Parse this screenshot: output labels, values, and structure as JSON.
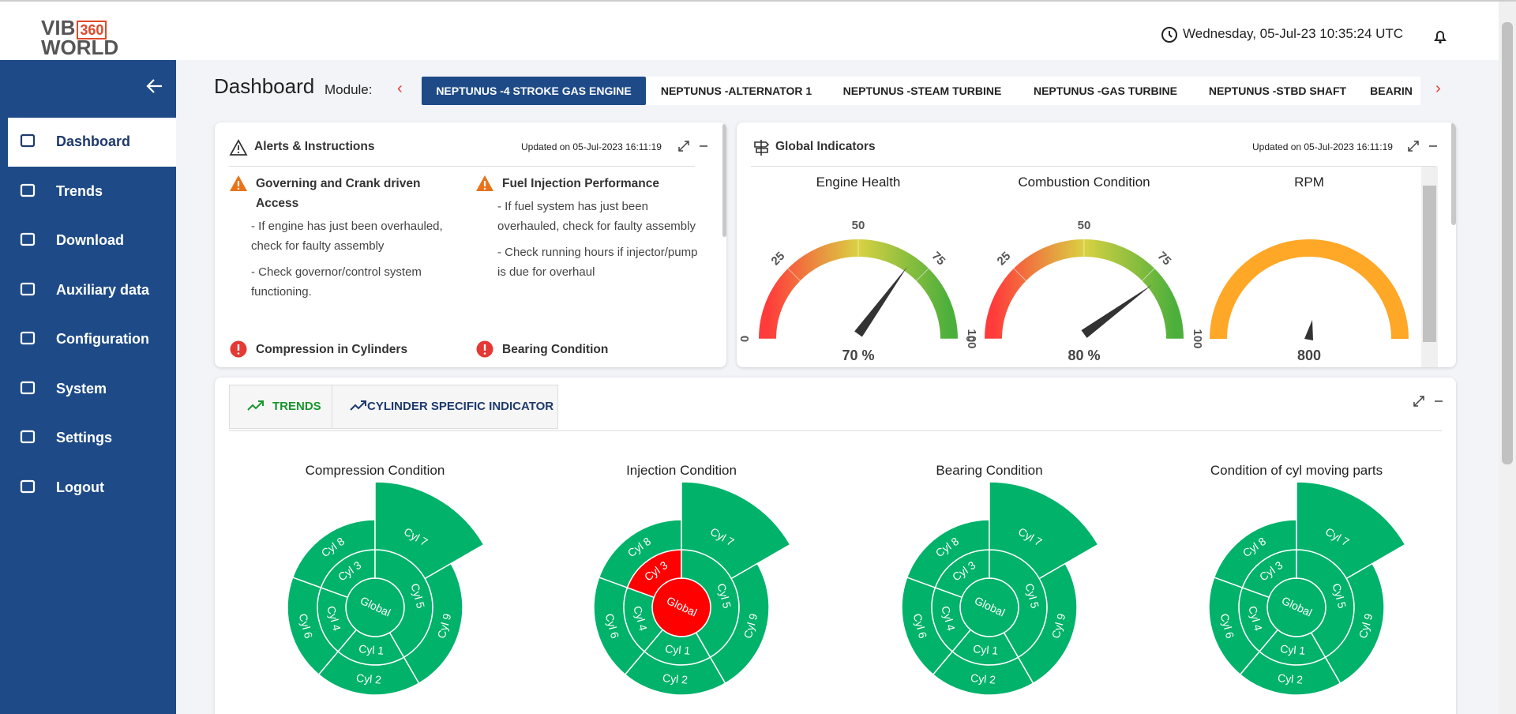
{
  "header": {
    "logo_top": "VIB",
    "logo_badge": "360",
    "logo_bottom": "WORLD",
    "datetime": "Wednesday, 05-Jul-23 10:35:24 UTC"
  },
  "sidebar": {
    "items": [
      "Dashboard",
      "Trends",
      "Download",
      "Auxiliary data",
      "Configuration",
      "System",
      "Settings",
      "Logout"
    ],
    "active": 0
  },
  "page": {
    "title": "Dashboard",
    "module_label": "Module:",
    "modules": [
      "NEPTUNUS -4 STROKE GAS ENGINE",
      "NEPTUNUS -ALTERNATOR 1",
      "NEPTUNUS -STEAM TURBINE",
      "NEPTUNUS -GAS TURBINE",
      "NEPTUNUS -STBD SHAFT",
      "BEARIN"
    ],
    "active_module": 0
  },
  "alerts": {
    "title": "Alerts & Instructions",
    "updated": "Updated on 05-Jul-2023 16:11:19",
    "items": [
      {
        "title": "Governing and Crank driven Access",
        "level": "warning",
        "bullets": [
          "-  If engine has just been overhauled, check for faulty assembly",
          "-  Check governor/control system functioning."
        ]
      },
      {
        "title": "Fuel Injection Performance",
        "level": "warning",
        "bullets": [
          "-  If fuel system has just been overhauled, check for faulty assembly",
          "-  Check running hours if injector/pump is due for overhaul"
        ]
      },
      {
        "title": "Compression in Cylinders",
        "level": "critical",
        "bullets": []
      },
      {
        "title": "Bearing Condition",
        "level": "critical",
        "bullets": []
      }
    ]
  },
  "global_indicators": {
    "title": "Global Indicators",
    "updated": "Updated on 05-Jul-2023 16:11:19",
    "gauges": [
      {
        "title": "Engine Health",
        "value": 70,
        "value_label": "70 %",
        "ylim": [
          0,
          100
        ],
        "ticks": [
          0,
          25,
          50,
          75,
          100
        ]
      },
      {
        "title": "Combustion Condition",
        "value": 80,
        "value_label": "80 %",
        "ylim": [
          0,
          100
        ],
        "ticks": [
          0,
          25,
          50,
          75,
          100
        ]
      },
      {
        "title": "RPM",
        "value_label": "800",
        "color": "#ffa726"
      }
    ]
  },
  "bottom": {
    "tabs": [
      "TRENDS",
      "CYLINDER SPECIFIC INDICATOR"
    ],
    "sunbursts": [
      {
        "title": "Compression Condition",
        "nodes": [
          {
            "label": "Global",
            "color": "#00b26a"
          },
          {
            "label": "Cyl 3",
            "color": "#00b26a"
          },
          {
            "label": "Cyl 5",
            "color": "#00b26a"
          },
          {
            "label": "Cyl 1",
            "color": "#00b26a"
          },
          {
            "label": "Cyl 4",
            "color": "#00b26a"
          },
          {
            "label": "Cyl 8",
            "color": "#00b26a"
          },
          {
            "label": "Cyl 7",
            "color": "#00b26a"
          },
          {
            "label": "Cyl 9",
            "color": "#00b26a"
          },
          {
            "label": "Cyl 2",
            "color": "#00b26a"
          },
          {
            "label": "Cyl 6",
            "color": "#00b26a"
          }
        ]
      },
      {
        "title": "Injection Condition",
        "nodes": [
          {
            "label": "Global",
            "color": "#ff0000"
          },
          {
            "label": "Cyl 3",
            "color": "#ff0000"
          },
          {
            "label": "Cyl 5",
            "color": "#00b26a"
          },
          {
            "label": "Cyl 1",
            "color": "#00b26a"
          },
          {
            "label": "Cyl 4",
            "color": "#00b26a"
          },
          {
            "label": "Cyl 8",
            "color": "#00b26a"
          },
          {
            "label": "Cyl 7",
            "color": "#00b26a"
          },
          {
            "label": "Cyl 9",
            "color": "#00b26a"
          },
          {
            "label": "Cyl 2",
            "color": "#00b26a"
          },
          {
            "label": "Cyl 6",
            "color": "#00b26a"
          }
        ]
      },
      {
        "title": "Bearing Condition",
        "nodes": [
          {
            "label": "Global",
            "color": "#00b26a"
          },
          {
            "label": "Cyl 3",
            "color": "#00b26a"
          },
          {
            "label": "Cyl 5",
            "color": "#00b26a"
          },
          {
            "label": "Cyl 1",
            "color": "#00b26a"
          },
          {
            "label": "Cyl 4",
            "color": "#00b26a"
          },
          {
            "label": "Cyl 8",
            "color": "#00b26a"
          },
          {
            "label": "Cyl 7",
            "color": "#00b26a"
          },
          {
            "label": "Cyl 9",
            "color": "#00b26a"
          },
          {
            "label": "Cyl 2",
            "color": "#00b26a"
          },
          {
            "label": "Cyl 6",
            "color": "#00b26a"
          }
        ]
      },
      {
        "title": "Condition of cyl moving parts",
        "nodes": [
          {
            "label": "Global",
            "color": "#00b26a"
          },
          {
            "label": "Cyl 3",
            "color": "#00b26a"
          },
          {
            "label": "Cyl 5",
            "color": "#00b26a"
          },
          {
            "label": "Cyl 1",
            "color": "#00b26a"
          },
          {
            "label": "Cyl 4",
            "color": "#00b26a"
          },
          {
            "label": "Cyl 8",
            "color": "#00b26a"
          },
          {
            "label": "Cyl 7",
            "color": "#00b26a"
          },
          {
            "label": "Cyl 9",
            "color": "#00b26a"
          },
          {
            "label": "Cyl 2",
            "color": "#00b26a"
          },
          {
            "label": "Cyl 6",
            "color": "#00b26a"
          }
        ]
      }
    ]
  }
}
